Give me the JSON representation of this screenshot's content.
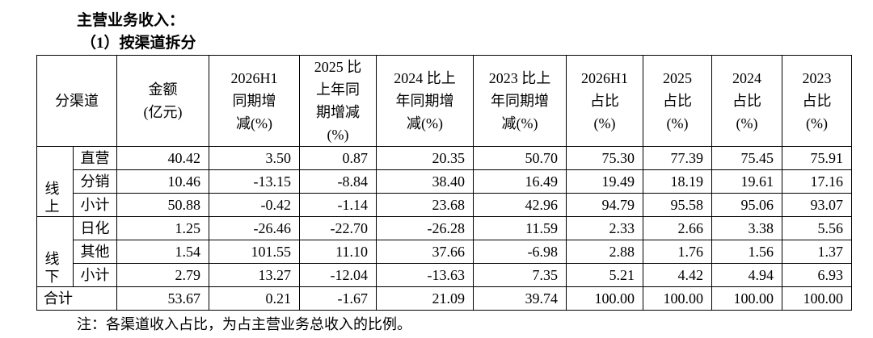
{
  "header": {
    "title": "主营业务收入：",
    "subtitle": "（1）按渠道拆分"
  },
  "table": {
    "columns": [
      "分渠道",
      "金额\n(亿元)",
      "2026H1\n同期增\n减(%)",
      "2025 比\n上年同\n期增减\n(%)",
      "2024 比上\n年同期增\n减(%)",
      "2023 比上\n年同期增\n减(%)",
      "2026H1\n占比\n(%)",
      "2025\n占比\n(%)",
      "2024\n占比\n(%)",
      "2023\n占比\n(%)"
    ],
    "groups": [
      {
        "label": "线上",
        "rows": [
          {
            "name": "直营",
            "values": [
              "40.42",
              "3.50",
              "0.87",
              "20.35",
              "50.70",
              "75.30",
              "77.39",
              "75.45",
              "75.91"
            ]
          },
          {
            "name": "分销",
            "values": [
              "10.46",
              "-13.15",
              "-8.84",
              "38.40",
              "16.49",
              "19.49",
              "18.19",
              "19.61",
              "17.16"
            ]
          },
          {
            "name": "小计",
            "values": [
              "50.88",
              "-0.42",
              "-1.14",
              "23.68",
              "42.96",
              "94.79",
              "95.58",
              "95.06",
              "93.07"
            ]
          }
        ]
      },
      {
        "label": "线下",
        "rows": [
          {
            "name": "日化",
            "values": [
              "1.25",
              "-26.46",
              "-22.70",
              "-26.28",
              "11.59",
              "2.33",
              "2.66",
              "3.38",
              "5.56"
            ]
          },
          {
            "name": "其他",
            "values": [
              "1.54",
              "101.55",
              "11.10",
              "37.66",
              "-6.98",
              "2.88",
              "1.76",
              "1.56",
              "1.37"
            ]
          },
          {
            "name": "小计",
            "values": [
              "2.79",
              "13.27",
              "-12.04",
              "-13.63",
              "7.35",
              "5.21",
              "4.42",
              "4.94",
              "6.93"
            ]
          }
        ]
      }
    ],
    "total": {
      "label": "合计",
      "values": [
        "53.67",
        "0.21",
        "-1.67",
        "21.09",
        "39.74",
        "100.00",
        "100.00",
        "100.00",
        "100.00"
      ]
    }
  },
  "note": "注：各渠道收入占比，为占主营业务总收入的比例。"
}
